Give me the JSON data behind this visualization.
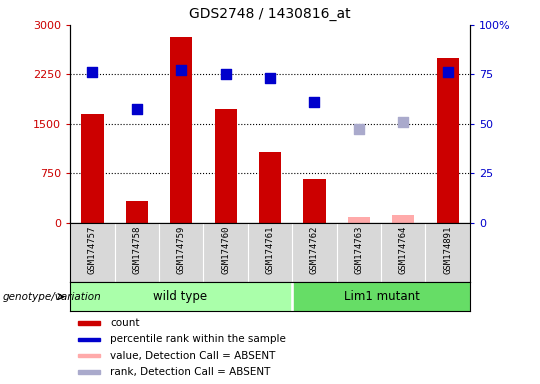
{
  "title": "GDS2748 / 1430816_at",
  "samples": [
    "GSM174757",
    "GSM174758",
    "GSM174759",
    "GSM174760",
    "GSM174761",
    "GSM174762",
    "GSM174763",
    "GSM174764",
    "GSM174891"
  ],
  "count_values": [
    1650,
    330,
    2820,
    1720,
    1080,
    660,
    null,
    null,
    2500
  ],
  "count_absent": [
    null,
    null,
    null,
    null,
    null,
    null,
    90,
    110,
    null
  ],
  "percentile_values": [
    2280,
    1730,
    2320,
    2250,
    2200,
    1830,
    null,
    null,
    2290
  ],
  "percentile_absent": [
    null,
    null,
    null,
    null,
    null,
    null,
    1420,
    1530,
    null
  ],
  "ylim_left": [
    0,
    3000
  ],
  "ylim_right": [
    0,
    100
  ],
  "yticks_left": [
    0,
    750,
    1500,
    2250,
    3000
  ],
  "yticks_right": [
    0,
    25,
    50,
    75,
    100
  ],
  "grid_values": [
    750,
    1500,
    2250
  ],
  "bar_color_present": "#cc0000",
  "bar_color_absent": "#ffaaaa",
  "dot_color_present": "#0000cc",
  "dot_color_absent": "#aaaacc",
  "wild_type_label": "wild type",
  "mutant_label": "Lim1 mutant",
  "group_label": "genotype/variation",
  "wt_color": "#aaffaa",
  "mut_color": "#66dd66",
  "legend_items": [
    {
      "label": "count",
      "color": "#cc0000"
    },
    {
      "label": "percentile rank within the sample",
      "color": "#0000cc"
    },
    {
      "label": "value, Detection Call = ABSENT",
      "color": "#ffaaaa"
    },
    {
      "label": "rank, Detection Call = ABSENT",
      "color": "#aaaacc"
    }
  ],
  "bar_width": 0.5,
  "dot_size": 55,
  "wt_cols": 5,
  "mut_cols": 4
}
